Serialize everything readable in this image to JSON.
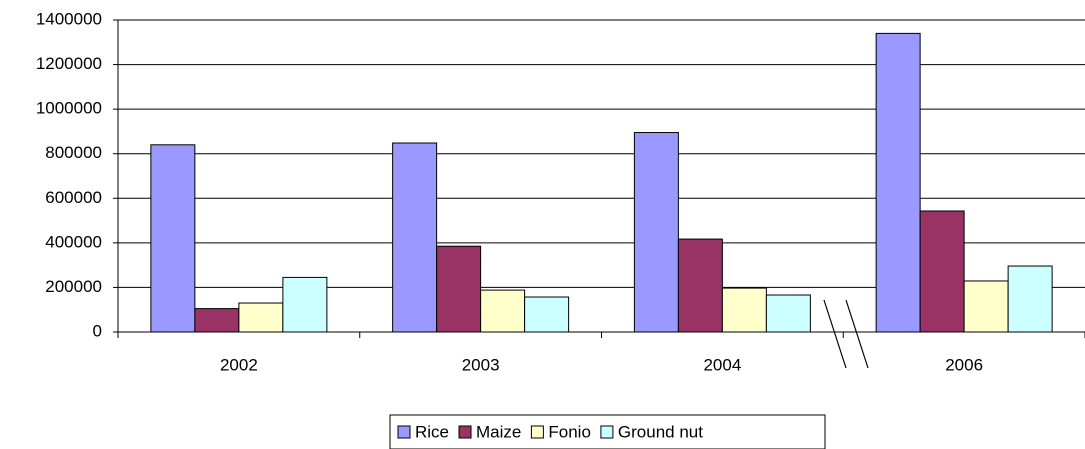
{
  "chart_data": {
    "type": "bar",
    "categories": [
      "2002",
      "2003",
      "2004",
      "2006"
    ],
    "series": [
      {
        "name": "Rice",
        "color": "#9999ff",
        "values": [
          840000,
          848000,
          895000,
          1340000
        ]
      },
      {
        "name": "Maize",
        "color": "#993366",
        "values": [
          105000,
          385000,
          417000,
          543000
        ]
      },
      {
        "name": "Fonio",
        "color": "#ffffcc",
        "values": [
          130000,
          188000,
          197000,
          229000
        ]
      },
      {
        "name": "Ground nut",
        "color": "#ccffff",
        "values": [
          245000,
          157000,
          166000,
          296000
        ]
      }
    ],
    "ylim": [
      0,
      1400000
    ],
    "yticks": [
      0,
      200000,
      400000,
      600000,
      800000,
      1000000,
      1200000,
      1400000
    ],
    "grid": true,
    "legend": "bottom"
  }
}
